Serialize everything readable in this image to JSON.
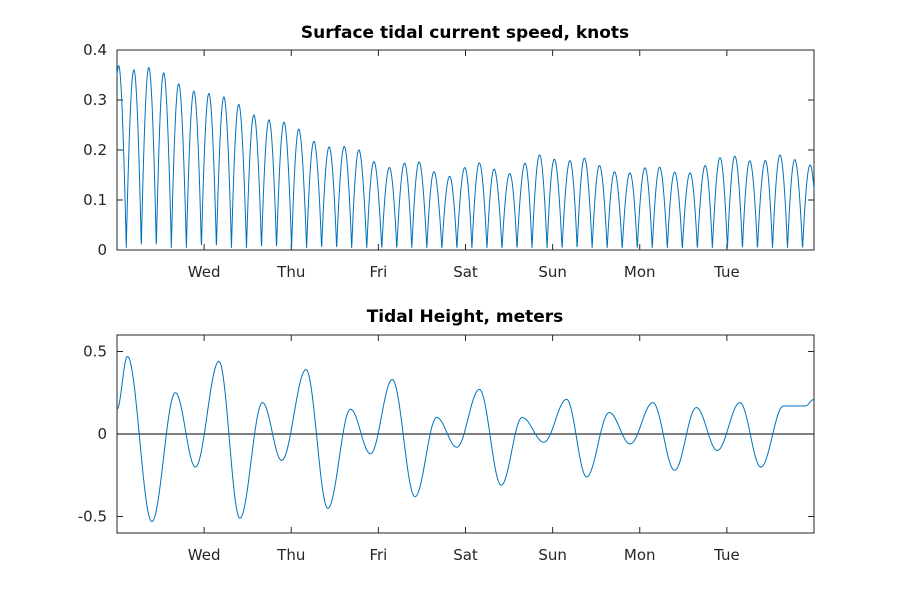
{
  "chart_data": [
    {
      "type": "line",
      "title": "Surface tidal current speed, knots",
      "xlabel": "",
      "ylabel": "",
      "ylim": [
        0,
        0.4
      ],
      "yticks": [
        0,
        0.1,
        0.2,
        0.3,
        0.4
      ],
      "ytick_labels": [
        "0",
        "0.1",
        "0.2",
        "0.3",
        "0.4"
      ],
      "xlim": [
        0,
        8
      ],
      "xticks": [
        1,
        2,
        3,
        4,
        5,
        6,
        7
      ],
      "xtick_labels": [
        "Wed",
        "Thu",
        "Fri",
        "Sat",
        "Sun",
        "Mon",
        "Tue"
      ],
      "grid": false,
      "color": "#0072BD",
      "series": [
        {
          "x": [
            0.0,
            0.1,
            0.28,
            0.45,
            0.64,
            0.8,
            0.98,
            1.15,
            1.33,
            1.5,
            1.67,
            1.84,
            2.02,
            2.18,
            2.36,
            2.53,
            2.7,
            2.88,
            3.05,
            3.22,
            3.4,
            3.57,
            3.74,
            3.91,
            4.08,
            4.26,
            4.43,
            4.6,
            4.77,
            4.94,
            5.12,
            5.29,
            5.46,
            5.64,
            5.81,
            5.98,
            6.15,
            6.32,
            6.5,
            6.67,
            6.84,
            7.01,
            7.18,
            7.36,
            7.53,
            7.7,
            7.87
          ],
          "y": [
            0.37,
            0.355,
            0.365,
            0.365,
            0.34,
            0.32,
            0.315,
            0.31,
            0.3,
            0.275,
            0.262,
            0.258,
            0.252,
            0.225,
            0.207,
            0.205,
            0.21,
            0.185,
            0.163,
            0.168,
            0.182,
            0.165,
            0.142,
            0.155,
            0.177,
            0.17,
            0.148,
            0.16,
            0.19,
            0.19,
            0.17,
            0.19,
            0.175,
            0.16,
            0.15,
            0.16,
            0.17,
            0.16,
            0.15,
            0.16,
            0.18,
            0.19,
            0.185,
            0.17,
            0.19,
            0.19,
            0.17
          ]
        }
      ]
    },
    {
      "type": "line",
      "title": "Tidal Height, meters",
      "xlabel": "",
      "ylabel": "",
      "ylim": [
        -0.6,
        0.6
      ],
      "yticks": [
        -0.5,
        0,
        0.5
      ],
      "ytick_labels": [
        "-0.5",
        "0",
        "0.5"
      ],
      "xlim": [
        0,
        8
      ],
      "xticks": [
        1,
        2,
        3,
        4,
        5,
        6,
        7
      ],
      "xtick_labels": [
        "Wed",
        "Thu",
        "Fri",
        "Sat",
        "Sun",
        "Mon",
        "Tue"
      ],
      "grid": false,
      "zero_line": true,
      "color": "#0072BD",
      "series": [
        {
          "x": [
            0.0,
            0.12,
            0.4,
            0.67,
            0.9,
            1.17,
            1.41,
            1.67,
            1.89,
            2.17,
            2.42,
            2.68,
            2.91,
            3.16,
            3.42,
            3.67,
            3.9,
            4.16,
            4.41,
            4.65,
            4.9,
            5.16,
            5.39,
            5.65,
            5.89,
            6.15,
            6.4,
            6.65,
            6.89,
            7.15,
            7.39,
            7.65,
            7.9,
            8.0
          ],
          "y": [
            0.15,
            0.47,
            -0.53,
            0.25,
            -0.2,
            0.44,
            -0.51,
            0.19,
            -0.16,
            0.39,
            -0.45,
            0.15,
            -0.12,
            0.33,
            -0.38,
            0.1,
            -0.08,
            0.27,
            -0.31,
            0.1,
            -0.05,
            0.21,
            -0.26,
            0.13,
            -0.06,
            0.19,
            -0.22,
            0.16,
            -0.1,
            0.19,
            -0.2,
            0.17,
            0.17,
            0.21
          ]
        }
      ]
    }
  ]
}
